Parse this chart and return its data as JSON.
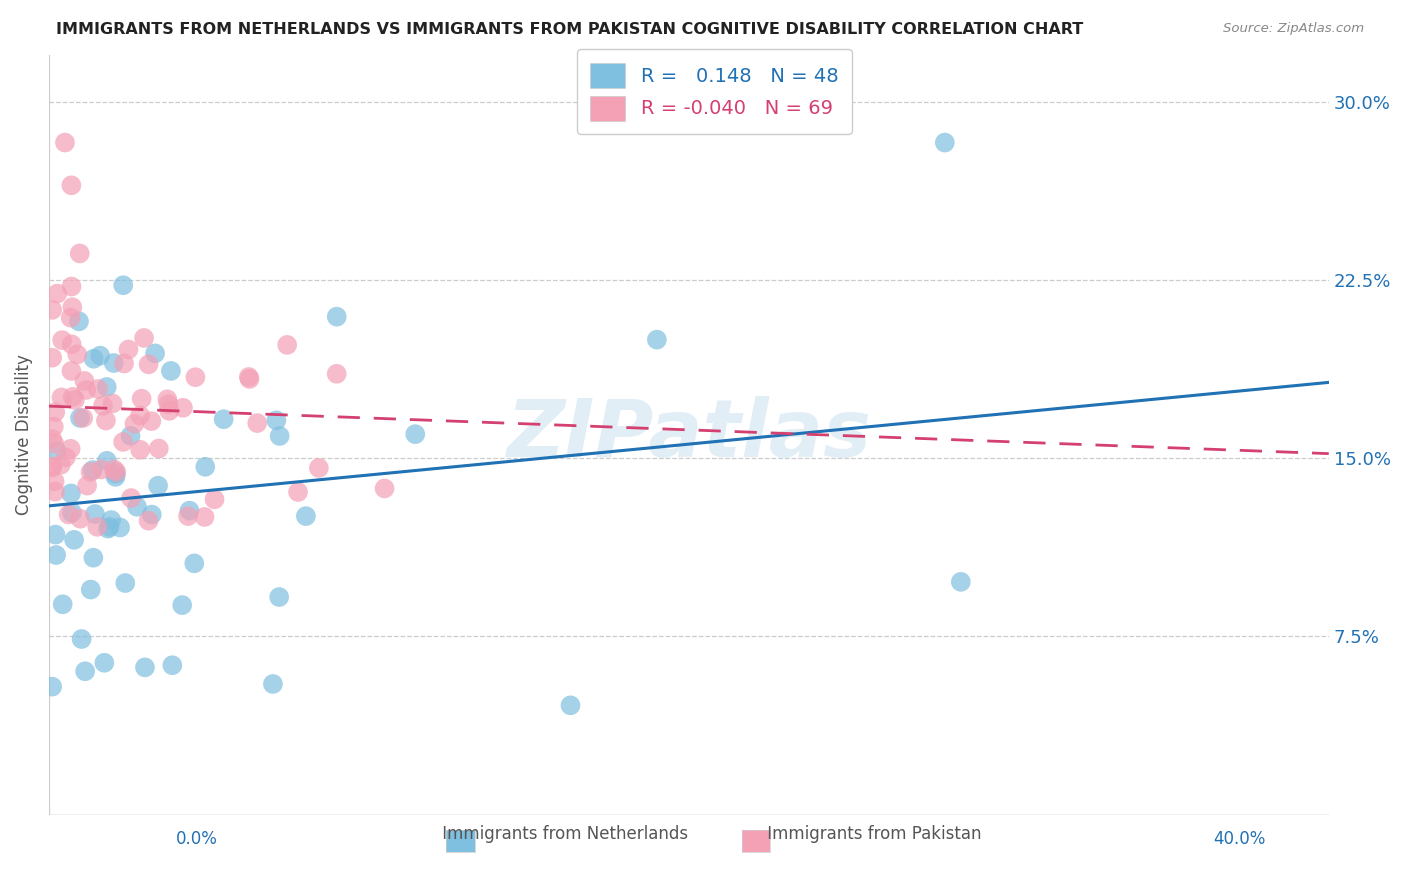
{
  "title": "IMMIGRANTS FROM NETHERLANDS VS IMMIGRANTS FROM PAKISTAN COGNITIVE DISABILITY CORRELATION CHART",
  "source": "Source: ZipAtlas.com",
  "xlabel_netherlands": "Immigrants from Netherlands",
  "xlabel_pakistan": "Immigrants from Pakistan",
  "ylabel": "Cognitive Disability",
  "xlim": [
    0.0,
    0.4
  ],
  "ylim": [
    0.0,
    0.32
  ],
  "xtick_positions": [
    0.0,
    0.1,
    0.2,
    0.3,
    0.4
  ],
  "ytick_positions": [
    0.075,
    0.15,
    0.225,
    0.3
  ],
  "ytick_labels": [
    "7.5%",
    "15.0%",
    "22.5%",
    "30.0%"
  ],
  "xtick_left_label": "0.0%",
  "xtick_right_label": "40.0%",
  "R_netherlands": 0.148,
  "N_netherlands": 48,
  "R_pakistan": -0.04,
  "N_pakistan": 69,
  "blue_color": "#7fbfdf",
  "pink_color": "#f4a0b5",
  "blue_line_color": "#2171b5",
  "pink_line_color": "#d44070",
  "text_color": "#2171b5",
  "watermark": "ZIPatlas",
  "neth_trend_x": [
    0.0,
    0.4
  ],
  "neth_trend_y": [
    0.13,
    0.182
  ],
  "pak_trend_x": [
    0.0,
    0.4
  ],
  "pak_trend_y": [
    0.172,
    0.152
  ]
}
